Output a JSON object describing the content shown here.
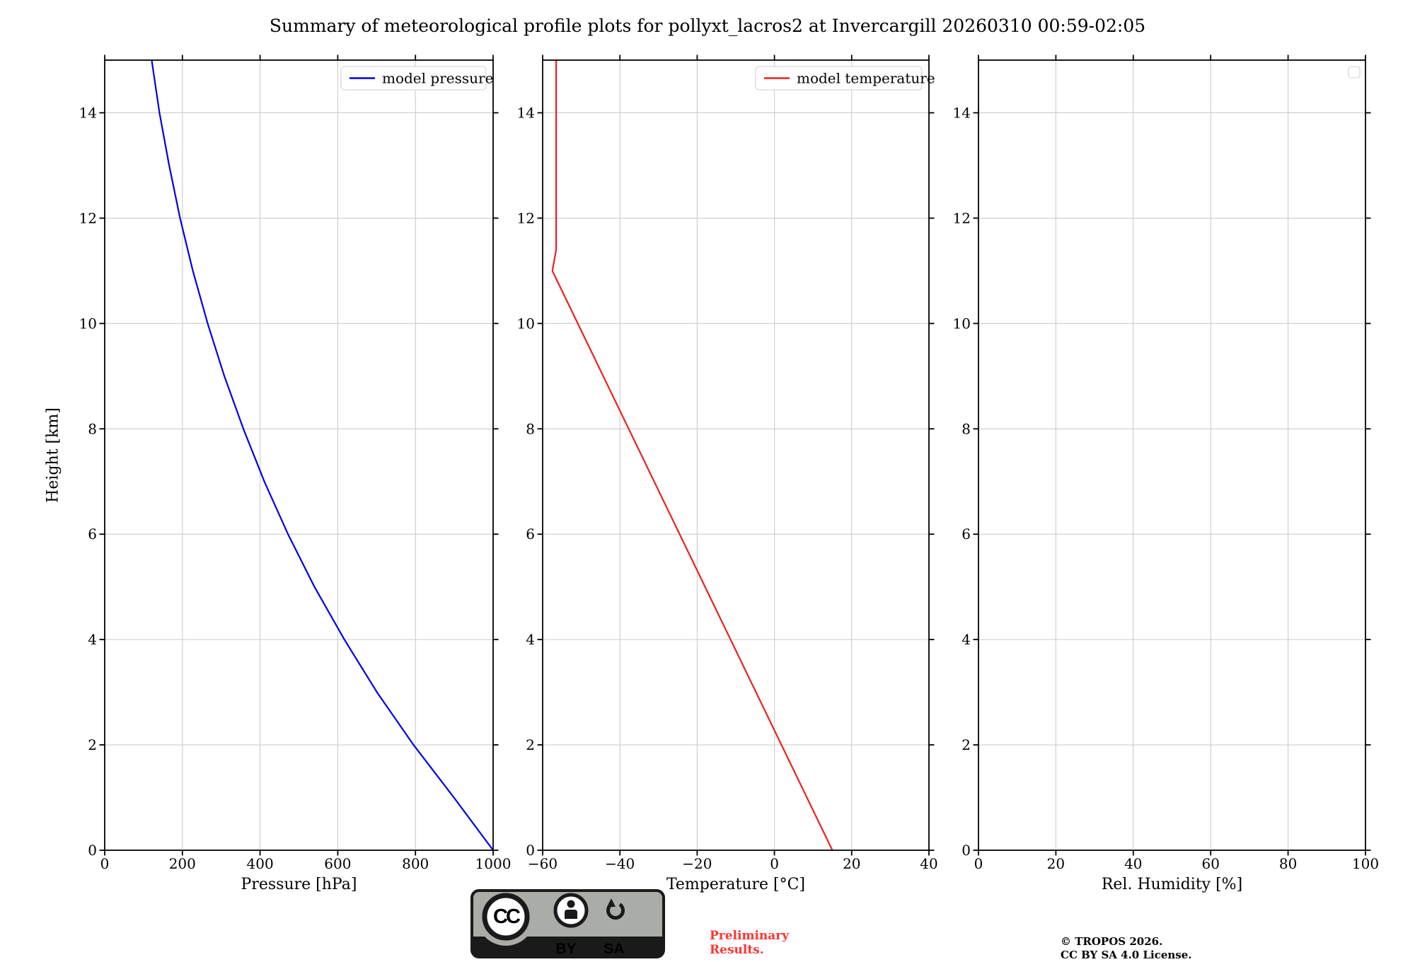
{
  "title": "Summary of meteorological profile plots for pollyxt_lacros2 at Invercargill 20260310 00:59-02:05",
  "colors": {
    "pressure_line": "#0000e6",
    "temperature_line": "#e62222",
    "grid": "#cccccc",
    "axis": "#000000",
    "legend_border": "#d9d9d9",
    "preliminary_text": "#ff3333",
    "badge_gray": "#aaaca7",
    "badge_black": "#1a1a1a"
  },
  "chart_data": [
    {
      "name": "pressure-profile",
      "type": "line",
      "xlabel": "Pressure [hPa]",
      "ylabel": "Height [km]",
      "xlim": [
        0,
        1000
      ],
      "ylim": [
        0,
        15
      ],
      "xticks": [
        0,
        200,
        400,
        600,
        800,
        1000
      ],
      "xtick_labels": [
        "0",
        "200",
        "400",
        "600",
        "800",
        "1000"
      ],
      "yticks": [
        0,
        2,
        4,
        6,
        8,
        10,
        12,
        14
      ],
      "ytick_labels": [
        "0",
        "2",
        "4",
        "6",
        "8",
        "10",
        "12",
        "14"
      ],
      "grid": true,
      "legend_entries": [
        {
          "label": "model pressure",
          "color": "#0000e6"
        }
      ],
      "series": [
        {
          "name": "model pressure",
          "color": "#0000e6",
          "x": [
            1000,
            899,
            795,
            701,
            617,
            540,
            472,
            411,
            357,
            308,
            265,
            227,
            194,
            166,
            141,
            121
          ],
          "y": [
            0,
            1,
            2,
            3,
            4,
            5,
            6,
            7,
            8,
            9,
            10,
            11,
            12,
            13,
            14,
            15
          ]
        }
      ]
    },
    {
      "name": "temperature-profile",
      "type": "line",
      "xlabel": "Temperature [°C]",
      "ylabel": null,
      "xlim": [
        -60,
        40
      ],
      "ylim": [
        0,
        15
      ],
      "xticks": [
        -60,
        -40,
        -20,
        0,
        20,
        40
      ],
      "xtick_labels": [
        "−60",
        "−40",
        "−20",
        "0",
        "20",
        "40"
      ],
      "yticks": [
        0,
        2,
        4,
        6,
        8,
        10,
        12,
        14
      ],
      "ytick_labels": [
        "0",
        "2",
        "4",
        "6",
        "8",
        "10",
        "12",
        "14"
      ],
      "grid": true,
      "legend_entries": [
        {
          "label": "model temperature",
          "color": "#e62222"
        }
      ],
      "series": [
        {
          "name": "model temperature",
          "color": "#e62222",
          "x": [
            15,
            -57.5,
            -56.5,
            -56.5
          ],
          "y": [
            0,
            11,
            11.4,
            15
          ]
        }
      ]
    },
    {
      "name": "humidity-profile",
      "type": "line",
      "xlabel": "Rel. Humidity [%]",
      "ylabel": null,
      "xlim": [
        0,
        100
      ],
      "ylim": [
        0,
        15
      ],
      "xticks": [
        0,
        20,
        40,
        60,
        80,
        100
      ],
      "xtick_labels": [
        "0",
        "20",
        "40",
        "60",
        "80",
        "100"
      ],
      "yticks": [
        0,
        2,
        4,
        6,
        8,
        10,
        12,
        14
      ],
      "ytick_labels": [
        "0",
        "2",
        "4",
        "6",
        "8",
        "10",
        "12",
        "14"
      ],
      "grid": true,
      "legend_entries": [],
      "series": []
    }
  ],
  "footer": {
    "badge": {
      "name": "CC BY SA",
      "cc_text": "CC",
      "labels": [
        "BY",
        "SA"
      ]
    },
    "preliminary": "Preliminary\nResults.",
    "copyright": "© TROPOS 2026.\nCC BY SA 4.0 License."
  }
}
